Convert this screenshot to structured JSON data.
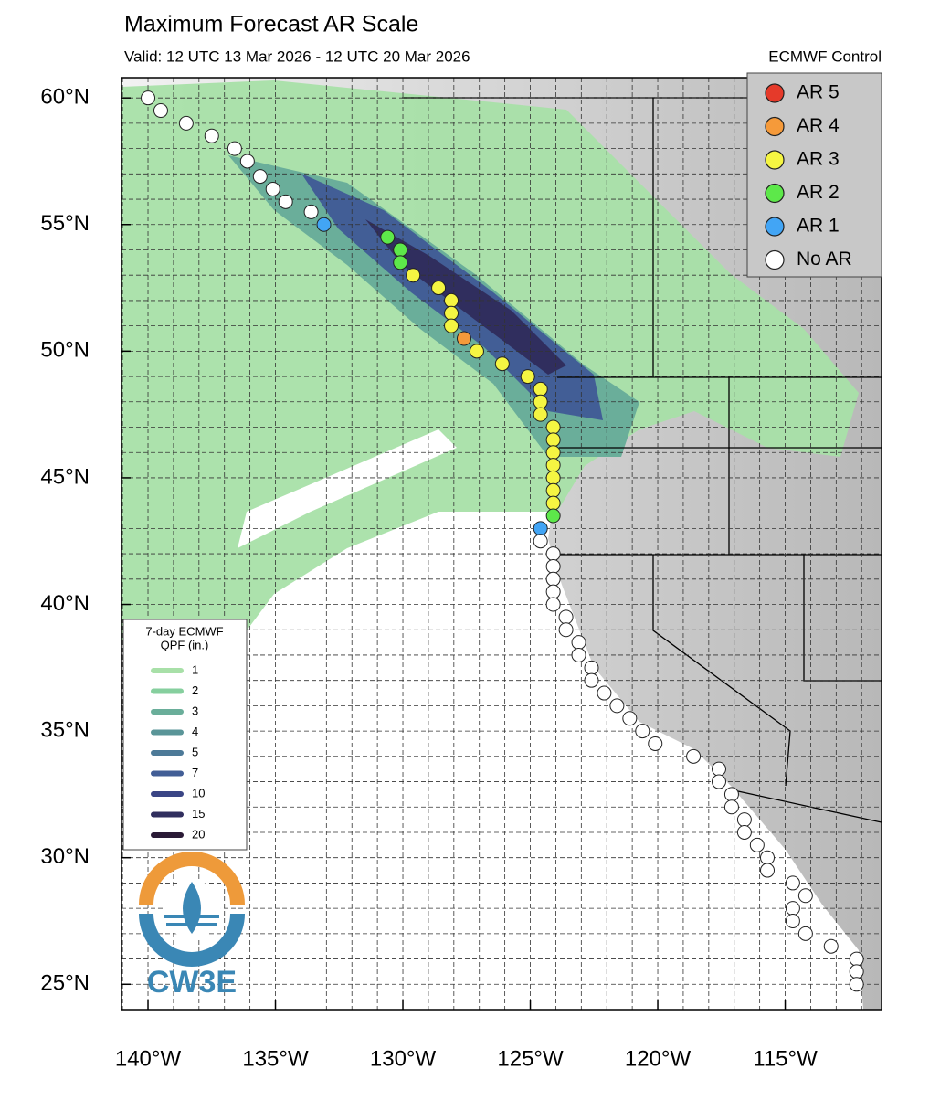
{
  "header": {
    "title": "Maximum Forecast AR Scale",
    "subtitle": "Valid: 12 UTC 13 Mar 2026 - 12 UTC 20 Mar 2026",
    "model": "ECMWF Control"
  },
  "map": {
    "xlim": [
      -141.04,
      -111.22
    ],
    "ylim": [
      24.0,
      60.8
    ],
    "xticks": [
      {
        "value": -140,
        "label": "140°W"
      },
      {
        "value": -135,
        "label": "135°W"
      },
      {
        "value": -130,
        "label": "130°W"
      },
      {
        "value": -125,
        "label": "125°W"
      },
      {
        "value": -120,
        "label": "120°W"
      },
      {
        "value": -115,
        "label": "115°W"
      }
    ],
    "yticks": [
      {
        "value": 60,
        "label": "60°N"
      },
      {
        "value": 55,
        "label": "55°N"
      },
      {
        "value": 50,
        "label": "50°N"
      },
      {
        "value": 45,
        "label": "45°N"
      },
      {
        "value": 40,
        "label": "40°N"
      },
      {
        "value": 35,
        "label": "35°N"
      },
      {
        "value": 30,
        "label": "30°N"
      },
      {
        "value": 25,
        "label": "25°N"
      }
    ],
    "grid": true,
    "points": {
      "lon": [
        -140.0,
        -139.5,
        -138.5,
        -137.5,
        -136.6,
        -136.1,
        -135.6,
        -135.1,
        -134.6,
        -133.6,
        -133.1,
        -130.6,
        -130.1,
        -130.1,
        -129.6,
        -128.6,
        -128.1,
        -128.1,
        -128.1,
        -127.6,
        -127.1,
        -126.1,
        -125.1,
        -124.6,
        -124.6,
        -124.6,
        -124.1,
        -124.1,
        -124.1,
        -124.1,
        -124.1,
        -124.1,
        -124.1,
        -124.1,
        -124.6,
        -124.6,
        -124.1,
        -124.1,
        -124.1,
        -124.1,
        -124.1,
        -123.6,
        -123.6,
        -123.1,
        -123.1,
        -122.6,
        -122.6,
        -122.1,
        -121.6,
        -121.1,
        -120.6,
        -120.1,
        -118.6,
        -117.6,
        -117.6,
        -117.1,
        -117.1,
        -116.6,
        -116.6,
        -116.1,
        -115.7,
        -115.7,
        -114.7,
        -114.2,
        -114.7,
        -114.7,
        -114.2,
        -113.2,
        -112.2,
        -112.2,
        -112.2
      ],
      "lat": [
        60.0,
        59.5,
        59.0,
        58.5,
        58.0,
        57.5,
        56.9,
        56.4,
        55.9,
        55.5,
        55.0,
        54.5,
        54.0,
        53.5,
        53.0,
        52.5,
        52.0,
        51.5,
        51.0,
        50.5,
        50.0,
        49.5,
        49.0,
        48.5,
        48.0,
        47.5,
        47.0,
        46.5,
        46.0,
        45.5,
        45.0,
        44.5,
        44.0,
        43.5,
        43.0,
        42.5,
        42.0,
        41.5,
        41.0,
        40.5,
        40.0,
        39.5,
        39.0,
        38.5,
        38.0,
        37.5,
        37.0,
        36.5,
        36.0,
        35.5,
        35.0,
        34.5,
        34.0,
        33.5,
        33.0,
        32.5,
        32.0,
        31.5,
        31.0,
        30.5,
        30.0,
        29.5,
        29.0,
        28.5,
        28.0,
        27.5,
        27.0,
        26.5,
        26.0,
        25.5,
        25.0
      ],
      "colors": [
        "#ffffff",
        "#ffffff",
        "#ffffff",
        "#ffffff",
        "#ffffff",
        "#ffffff",
        "#ffffff",
        "#ffffff",
        "#ffffff",
        "#ffffff",
        "#42a5f5",
        "#5de84a",
        "#5de84a",
        "#5de84a",
        "#f5f542",
        "#f5f542",
        "#f5f542",
        "#f5f542",
        "#f5f542",
        "#f59a3a",
        "#f5f542",
        "#f5f542",
        "#f5f542",
        "#f5f542",
        "#f5f542",
        "#f5f542",
        "#f5f542",
        "#f5f542",
        "#f5f542",
        "#f5f542",
        "#f5f542",
        "#f5f542",
        "#f5f542",
        "#5de84a",
        "#42a5f5",
        "#ffffff",
        "#ffffff",
        "#ffffff",
        "#ffffff",
        "#ffffff",
        "#ffffff",
        "#ffffff",
        "#ffffff",
        "#ffffff",
        "#ffffff",
        "#ffffff",
        "#ffffff",
        "#ffffff",
        "#ffffff",
        "#ffffff",
        "#ffffff",
        "#ffffff",
        "#ffffff",
        "#ffffff",
        "#ffffff",
        "#ffffff",
        "#ffffff",
        "#ffffff",
        "#ffffff",
        "#ffffff",
        "#ffffff",
        "#ffffff",
        "#ffffff",
        "#ffffff",
        "#ffffff",
        "#ffffff",
        "#ffffff",
        "#ffffff",
        "#ffffff",
        "#ffffff",
        "#ffffff"
      ]
    }
  },
  "ar_legend": [
    {
      "label": "AR 5",
      "color": "#e53a2a"
    },
    {
      "label": "AR 4",
      "color": "#f59a3a"
    },
    {
      "label": "AR 3",
      "color": "#f5f542"
    },
    {
      "label": "AR 2",
      "color": "#5de84a"
    },
    {
      "label": "AR 1",
      "color": "#42a5f5"
    },
    {
      "label": "No AR",
      "color": "#ffffff"
    }
  ],
  "qpf_legend": {
    "title": [
      "7-day ECMWF",
      "QPF (in.)"
    ],
    "items": [
      {
        "label": 1,
        "color": "#a8e0a8"
      },
      {
        "label": 2,
        "color": "#86cf9e"
      },
      {
        "label": 3,
        "color": "#6aae9a"
      },
      {
        "label": 4,
        "color": "#5a9598"
      },
      {
        "label": 5,
        "color": "#4d7a98"
      },
      {
        "label": 7,
        "color": "#425e96"
      },
      {
        "label": 10,
        "color": "#3a4585"
      },
      {
        "label": 15,
        "color": "#302e5e"
      },
      {
        "label": 20,
        "color": "#2a1a36"
      }
    ]
  },
  "logo": "CW3E"
}
